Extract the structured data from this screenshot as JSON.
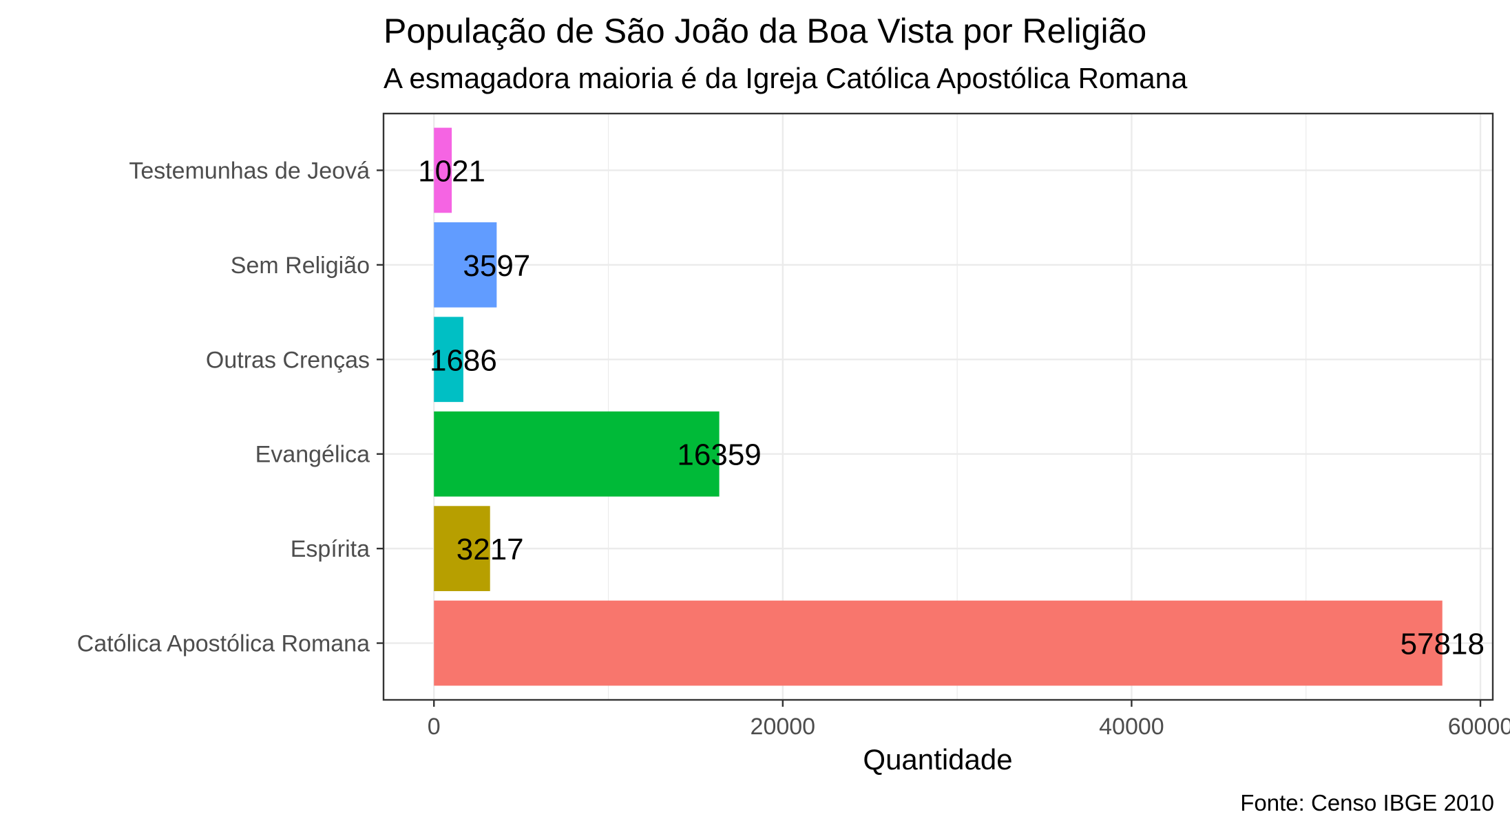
{
  "chart_data": {
    "type": "bar",
    "orientation": "horizontal",
    "title": "População de São João da Boa Vista por Religião",
    "subtitle": "A esmagadora maioria é da Igreja Católica Apostólica Romana",
    "xlabel": "Quantidade",
    "ylabel": "",
    "caption": "Fonte: Censo IBGE 2010",
    "categories": [
      "Católica Apostólica Romana",
      "Espírita",
      "Evangélica",
      "Outras Crenças",
      "Sem Religião",
      "Testemunhas de Jeová"
    ],
    "values": [
      57818,
      3217,
      16359,
      1686,
      3597,
      1021
    ],
    "colors": [
      "#F8766D",
      "#B79F00",
      "#00BA38",
      "#00BFC4",
      "#619CFF",
      "#F564E3"
    ],
    "xlim": [
      -2891,
      60710
    ],
    "xticks": [
      0,
      20000,
      40000,
      60000
    ],
    "xtick_labels": [
      "0",
      "20000",
      "40000",
      "60000"
    ],
    "grid": true,
    "legend": "none",
    "data_labels": true
  }
}
